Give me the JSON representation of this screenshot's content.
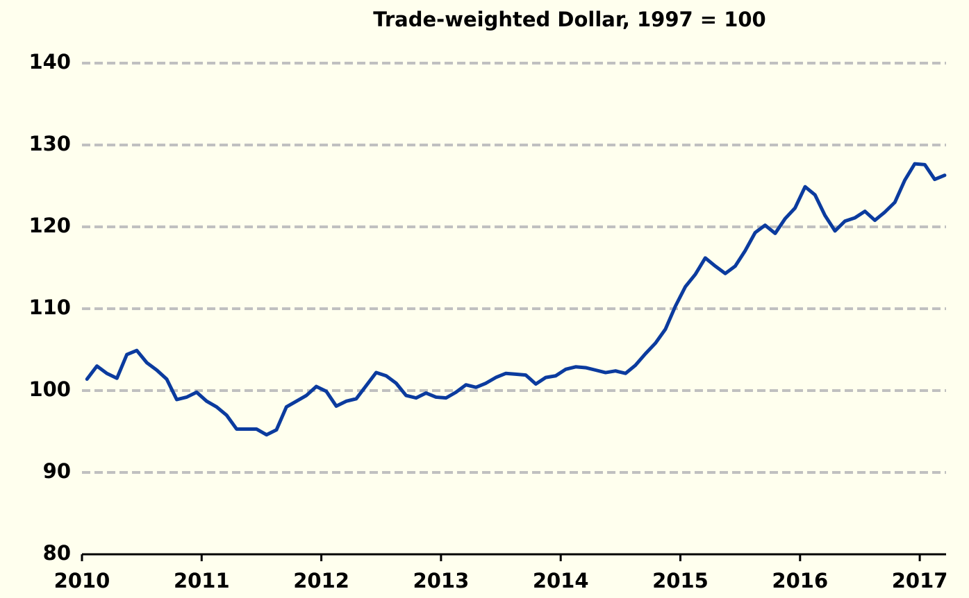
{
  "chart_data": {
    "type": "line",
    "title": "Trade-weighted Dollar, 1997 = 100",
    "x": [
      2010.042,
      2010.125,
      2010.208,
      2010.292,
      2010.375,
      2010.458,
      2010.542,
      2010.625,
      2010.708,
      2010.792,
      2010.875,
      2010.958,
      2011.042,
      2011.125,
      2011.208,
      2011.292,
      2011.375,
      2011.458,
      2011.542,
      2011.625,
      2011.708,
      2011.792,
      2011.875,
      2011.958,
      2012.042,
      2012.125,
      2012.208,
      2012.292,
      2012.375,
      2012.458,
      2012.542,
      2012.625,
      2012.708,
      2012.792,
      2012.875,
      2012.958,
      2013.042,
      2013.125,
      2013.208,
      2013.292,
      2013.375,
      2013.458,
      2013.542,
      2013.625,
      2013.708,
      2013.792,
      2013.875,
      2013.958,
      2014.042,
      2014.125,
      2014.208,
      2014.292,
      2014.375,
      2014.458,
      2014.542,
      2014.625,
      2014.708,
      2014.792,
      2014.875,
      2014.958,
      2015.042,
      2015.125,
      2015.208,
      2015.292,
      2015.375,
      2015.458,
      2015.542,
      2015.625,
      2015.708,
      2015.792,
      2015.875,
      2015.958,
      2016.042,
      2016.125,
      2016.208,
      2016.292,
      2016.375,
      2016.458,
      2016.542,
      2016.625,
      2016.708,
      2016.792,
      2016.875,
      2016.958,
      2017.042,
      2017.125,
      2017.208
    ],
    "series": [
      {
        "color": "#0b3b9e",
        "values": [
          101.4,
          103.0,
          102.1,
          101.5,
          104.4,
          104.9,
          103.4,
          102.5,
          101.4,
          98.9,
          99.2,
          99.8,
          98.7,
          98.0,
          97.0,
          95.3,
          95.3,
          95.3,
          94.6,
          95.2,
          98.0,
          98.7,
          99.4,
          100.5,
          99.9,
          98.1,
          98.7,
          99.0,
          100.6,
          102.2,
          101.8,
          100.9,
          99.4,
          99.1,
          99.7,
          99.2,
          99.1,
          99.8,
          100.7,
          100.4,
          100.9,
          101.6,
          102.1,
          102.0,
          101.9,
          100.8,
          101.6,
          101.8,
          102.6,
          102.9,
          102.8,
          102.5,
          102.2,
          102.4,
          102.1,
          103.1,
          104.5,
          105.8,
          107.5,
          110.3,
          112.7,
          114.2,
          116.2,
          115.2,
          114.3,
          115.2,
          117.1,
          119.3,
          120.2,
          119.2,
          121.0,
          122.3,
          124.9,
          123.9,
          121.4,
          119.5,
          120.7,
          121.1,
          121.9,
          120.8,
          121.8,
          123.0,
          125.7,
          127.7,
          127.6,
          125.8,
          126.3
        ]
      }
    ],
    "xlim": [
      2010,
      2017.22
    ],
    "xticks": [
      2010,
      2011,
      2012,
      2013,
      2014,
      2015,
      2016,
      2017
    ],
    "ylim": [
      80,
      140
    ],
    "yticks": [
      80,
      90,
      100,
      110,
      120,
      130,
      140
    ],
    "grid": true
  }
}
